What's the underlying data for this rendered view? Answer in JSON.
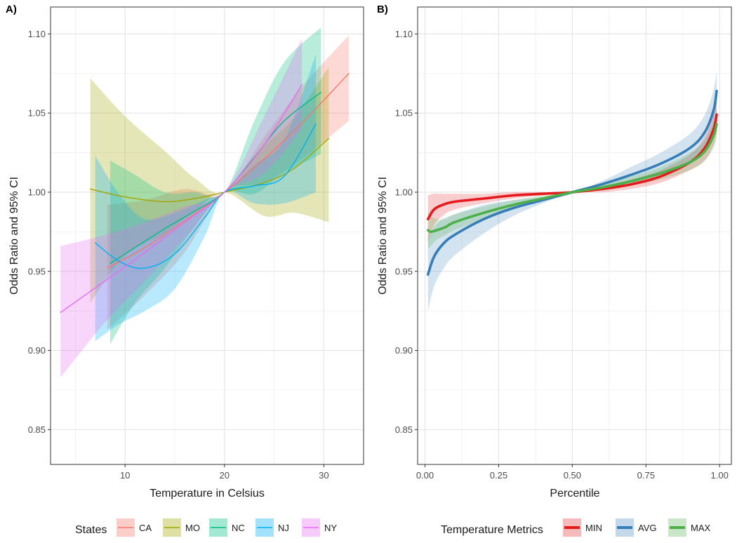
{
  "chart_data": [
    {
      "panel": "A)",
      "type": "line",
      "xlabel": "Temperature in Celsius",
      "ylabel": "Odds Ratio and 95% CI",
      "xlim": [
        2.5,
        34
      ],
      "ylim": [
        0.828,
        1.117
      ],
      "xticks": [
        10,
        20,
        30
      ],
      "yticks": [
        0.85,
        0.9,
        0.95,
        1.0,
        1.05,
        1.1
      ],
      "ytick_labels": [
        "0.85",
        "0.90",
        "0.95",
        "1.00",
        "1.05",
        "1.10"
      ],
      "legend_title": "States",
      "legend_position": "bottom",
      "series": [
        {
          "name": "CA",
          "color": "#F8766D",
          "x": [
            8.2,
            12,
            16,
            20,
            24,
            28,
            32.5
          ],
          "y": [
            0.952,
            0.965,
            0.982,
            1.0,
            1.021,
            1.045,
            1.075
          ],
          "lower": [
            0.913,
            0.935,
            0.962,
            1.0,
            1.006,
            1.022,
            1.045
          ],
          "upper": [
            0.992,
            0.995,
            1.002,
            1.0,
            1.035,
            1.068,
            1.099
          ]
        },
        {
          "name": "MO",
          "color": "#A3A500",
          "x": [
            6.5,
            10,
            14,
            17,
            20,
            24,
            27,
            30.5
          ],
          "y": [
            1.002,
            0.997,
            0.994,
            0.996,
            1.0,
            1.006,
            1.015,
            1.034
          ],
          "lower": [
            0.93,
            0.96,
            0.974,
            0.988,
            1.0,
            0.985,
            0.987,
            0.981
          ],
          "upper": [
            1.072,
            1.048,
            1.026,
            1.009,
            1.0,
            1.029,
            1.047,
            1.079
          ]
        },
        {
          "name": "NC",
          "color": "#00BF7D",
          "x": [
            8.5,
            11,
            14,
            17,
            20,
            23,
            26,
            29.7
          ],
          "y": [
            0.955,
            0.965,
            0.977,
            0.988,
            1.0,
            1.022,
            1.045,
            1.063
          ],
          "lower": [
            0.904,
            0.93,
            0.952,
            0.978,
            1.0,
            0.999,
            1.012,
            1.024
          ],
          "upper": [
            1.02,
            1.011,
            1.0,
            1.0,
            1.0,
            1.045,
            1.082,
            1.104
          ]
        },
        {
          "name": "NJ",
          "color": "#00B0F6",
          "x": [
            7.0,
            9.5,
            12,
            15,
            18,
            20,
            23,
            26,
            29.2
          ],
          "y": [
            0.968,
            0.956,
            0.952,
            0.961,
            0.984,
            1.0,
            1.004,
            1.01,
            1.043
          ],
          "lower": [
            0.906,
            0.917,
            0.925,
            0.939,
            0.972,
            1.0,
            0.993,
            0.993,
            1.0
          ],
          "upper": [
            1.023,
            0.998,
            0.983,
            0.987,
            0.995,
            1.0,
            1.017,
            1.033,
            1.087
          ]
        },
        {
          "name": "NY",
          "color": "#E76BF3",
          "x": [
            3.5,
            8,
            12,
            16,
            20,
            24,
            27.8
          ],
          "y": [
            0.924,
            0.944,
            0.962,
            0.981,
            1.0,
            1.03,
            1.068
          ],
          "lower": [
            0.883,
            0.918,
            0.944,
            0.971,
            1.0,
            1.012,
            1.04
          ],
          "upper": [
            0.966,
            0.973,
            0.981,
            0.991,
            1.0,
            1.048,
            1.097
          ]
        }
      ]
    },
    {
      "panel": "B)",
      "type": "line",
      "xlabel": "Percentile",
      "ylabel": "Odds Ratio and 95% CI",
      "xlim": [
        -0.025,
        1.04
      ],
      "ylim": [
        0.828,
        1.117
      ],
      "xticks": [
        0,
        0.25,
        0.5,
        0.75,
        1.0
      ],
      "xtick_labels": [
        "0.00",
        "0.25",
        "0.50",
        "0.75",
        "1.00"
      ],
      "yticks": [
        0.85,
        0.9,
        0.95,
        1.0,
        1.05,
        1.1
      ],
      "ytick_labels": [
        "0.85",
        "0.90",
        "0.95",
        "1.00",
        "1.05",
        "1.10"
      ],
      "legend_title": "Temperature Metrics",
      "legend_position": "bottom",
      "series": [
        {
          "name": "MIN",
          "color": "#E41A1C",
          "x": [
            0.01,
            0.03,
            0.06,
            0.1,
            0.2,
            0.3,
            0.4,
            0.5,
            0.6,
            0.7,
            0.8,
            0.9,
            0.95,
            0.98,
            0.99
          ],
          "y": [
            0.983,
            0.989,
            0.992,
            0.994,
            0.996,
            0.998,
            0.999,
            1.0,
            1.002,
            1.005,
            1.01,
            1.019,
            1.028,
            1.04,
            1.049
          ],
          "lower": [
            0.968,
            0.979,
            0.985,
            0.989,
            0.993,
            0.996,
            0.998,
            1.0,
            1.0,
            1.002,
            1.006,
            1.014,
            1.02,
            1.03,
            1.037
          ],
          "upper": [
            0.998,
            0.999,
            0.999,
            0.999,
            0.999,
            1.0,
            1.0,
            1.0,
            1.003,
            1.008,
            1.014,
            1.024,
            1.035,
            1.05,
            1.061
          ]
        },
        {
          "name": "AVG",
          "color": "#377EB8",
          "x": [
            0.01,
            0.03,
            0.06,
            0.1,
            0.2,
            0.3,
            0.4,
            0.5,
            0.6,
            0.7,
            0.8,
            0.9,
            0.95,
            0.98,
            0.99
          ],
          "y": [
            0.948,
            0.959,
            0.967,
            0.973,
            0.983,
            0.99,
            0.995,
            1.0,
            1.005,
            1.011,
            1.018,
            1.028,
            1.038,
            1.052,
            1.064
          ],
          "lower": [
            0.925,
            0.94,
            0.951,
            0.96,
            0.974,
            0.985,
            0.993,
            1.0,
            1.003,
            1.006,
            1.011,
            1.019,
            1.027,
            1.039,
            1.051
          ],
          "upper": [
            0.971,
            0.978,
            0.983,
            0.986,
            0.992,
            0.995,
            0.997,
            1.0,
            1.007,
            1.016,
            1.025,
            1.037,
            1.049,
            1.065,
            1.077
          ]
        },
        {
          "name": "MAX",
          "color": "#4DAF4A",
          "x": [
            0.01,
            0.02,
            0.04,
            0.07,
            0.1,
            0.2,
            0.3,
            0.4,
            0.5,
            0.6,
            0.7,
            0.8,
            0.9,
            0.95,
            0.98,
            0.99
          ],
          "y": [
            0.976,
            0.975,
            0.976,
            0.978,
            0.981,
            0.987,
            0.992,
            0.996,
            1.0,
            1.003,
            1.007,
            1.012,
            1.019,
            1.026,
            1.036,
            1.043
          ],
          "lower": [
            0.964,
            0.966,
            0.97,
            0.973,
            0.976,
            0.983,
            0.989,
            0.995,
            1.0,
            1.001,
            1.004,
            1.008,
            1.014,
            1.02,
            1.028,
            1.034
          ],
          "upper": [
            0.988,
            0.985,
            0.983,
            0.983,
            0.986,
            0.991,
            0.995,
            0.998,
            1.0,
            1.005,
            1.01,
            1.016,
            1.025,
            1.033,
            1.045,
            1.053
          ]
        }
      ]
    }
  ]
}
